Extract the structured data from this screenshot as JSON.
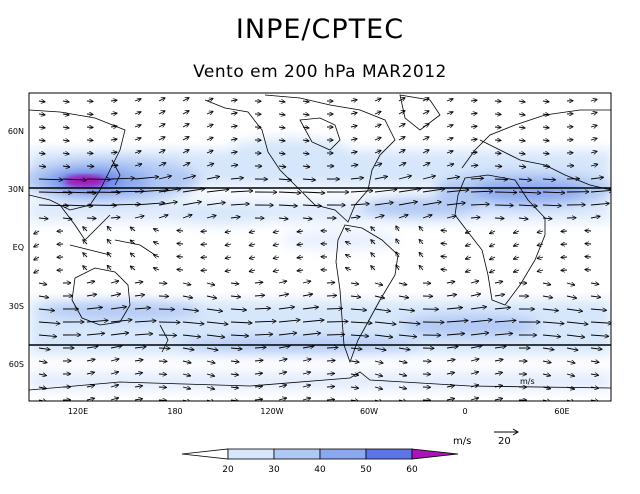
{
  "header": {
    "title": "INPE/CPTEC",
    "subtitle": "Vento em 200 hPa MAR2012"
  },
  "map": {
    "lat_labels": [
      "60N",
      "30N",
      "EQ",
      "30S",
      "60S"
    ],
    "lon_labels": [
      "120E",
      "180",
      "120W",
      "60W",
      "0",
      "60E"
    ],
    "reference_arrow_label": "m/s",
    "reference_arrow_value": "20",
    "inset_unit_label": "m/s"
  },
  "colorbar": {
    "ticks": [
      "20",
      "30",
      "40",
      "50",
      "60"
    ],
    "colors": [
      "#ffffff",
      "#d6e6fb",
      "#b0c8f4",
      "#8ba7ef",
      "#5c74e8",
      "#a814b8"
    ]
  },
  "colors": {
    "jet_core": "#a814b8",
    "shade_light": "#d6e6fb",
    "shade_mid": "#b0c8f4",
    "shade_strong": "#8ba7ef",
    "shade_max": "#5c74e8"
  }
}
